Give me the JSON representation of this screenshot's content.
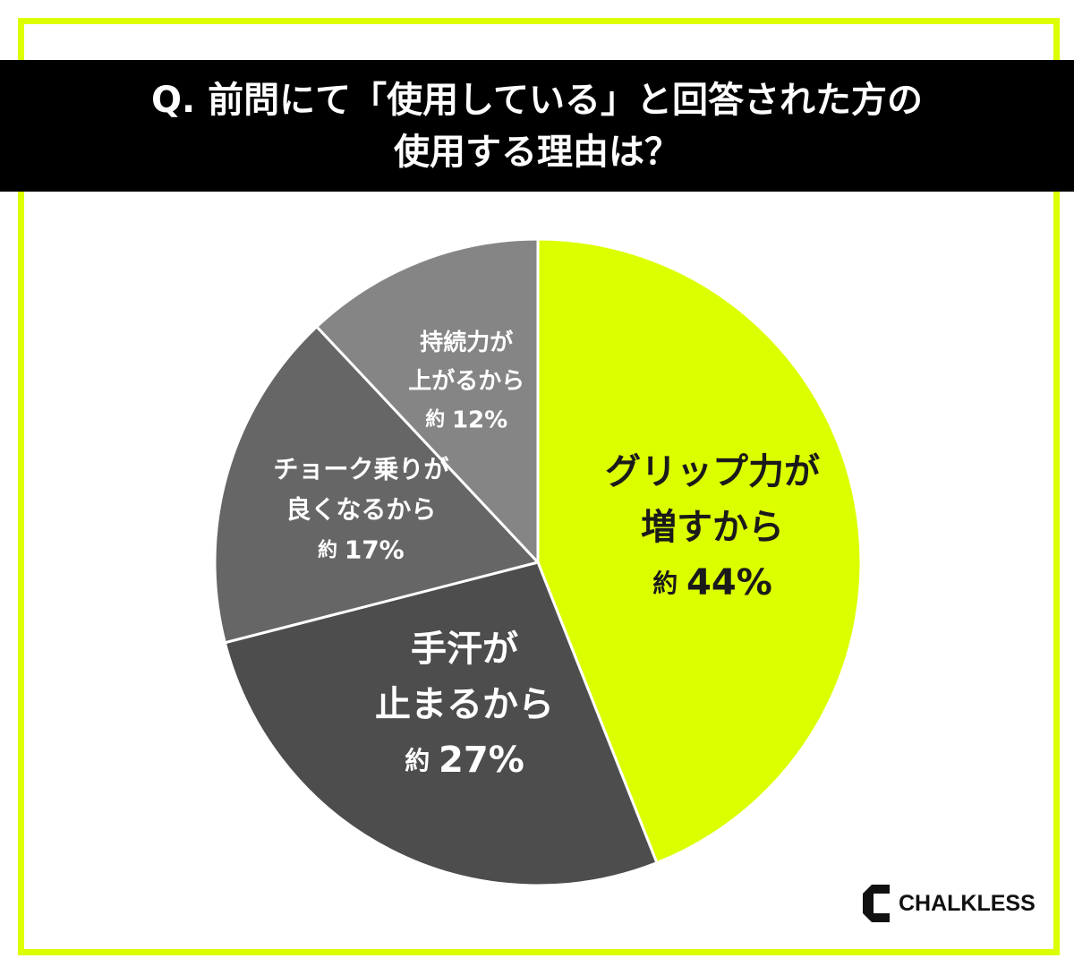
{
  "title": {
    "line1": "Q. 前問にて「使用している」と回答された方の",
    "line2": "使用する理由は？"
  },
  "colors": {
    "accent": "#dcff00",
    "title_bg": "#000000",
    "title_text": "#ffffff"
  },
  "chart_data": {
    "type": "pie",
    "start": "12 o'clock, clockwise",
    "slices": [
      {
        "lines": [
          "グリップ力が",
          "増すから"
        ],
        "pct_label": "44%",
        "value": 44,
        "color": "#dcff00",
        "text_color": "#1a1a1a"
      },
      {
        "lines": [
          "手汗が",
          "止まるから"
        ],
        "pct_label": "27%",
        "value": 27,
        "color": "#4d4d4d",
        "text_color": "#ffffff"
      },
      {
        "lines": [
          "チョーク乗りが",
          "良くなるから"
        ],
        "pct_label": "17%",
        "value": 17,
        "color": "#666666",
        "text_color": "#ffffff"
      },
      {
        "lines": [
          "持続力が",
          "上がるから"
        ],
        "pct_label": "12%",
        "value": 12,
        "color": "#858585",
        "text_color": "#ffffff"
      }
    ],
    "approx_prefix": "約"
  },
  "logo": {
    "text": "CHALKLESS"
  }
}
